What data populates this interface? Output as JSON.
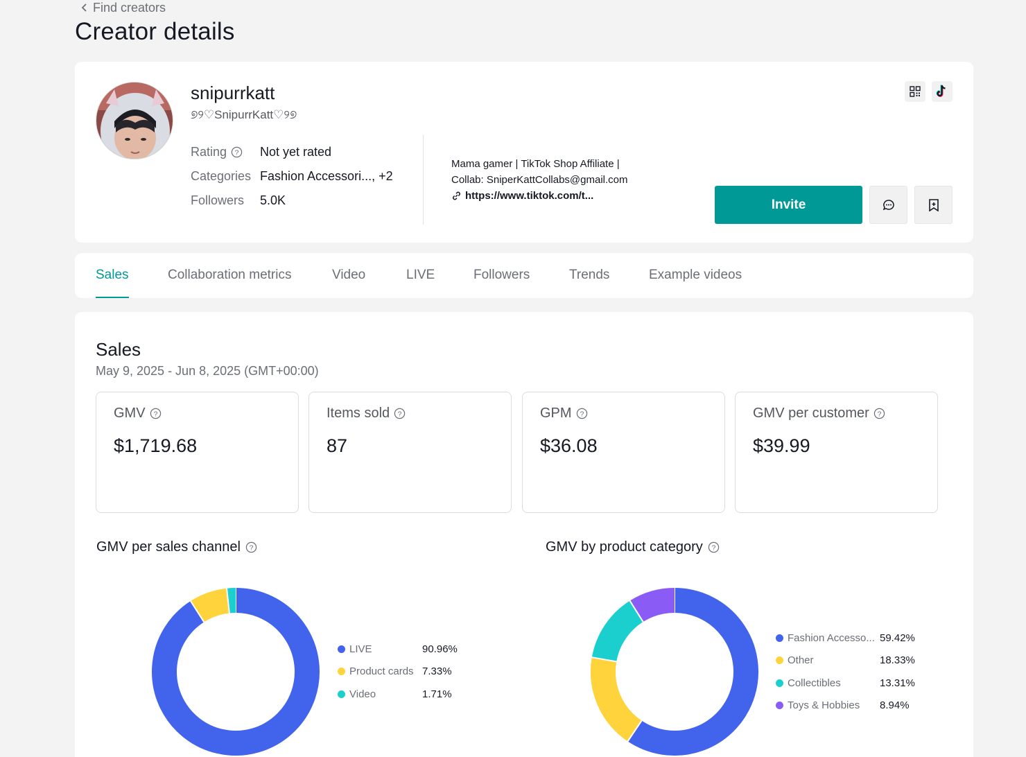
{
  "breadcrumb": {
    "back_label": "Find creators"
  },
  "page_title": "Creator details",
  "profile": {
    "username": "snipurrkatt",
    "nickname": "୭୨♡SnipurrKatt♡୨୭",
    "rating_label": "Rating",
    "rating_value": "Not yet rated",
    "categories_label": "Categories",
    "categories_value": "Fashion Accessori..., +2",
    "followers_label": "Followers",
    "followers_value": "5.0K",
    "bio_line1": "Mama gamer | TikTok Shop Affiliate |",
    "bio_line2": "Collab: SniperKattCollabs@gmail.com",
    "bio_link": "https://www.tiktok.com/t...",
    "invite_label": "Invite"
  },
  "tabs": [
    {
      "label": "Sales",
      "active": true
    },
    {
      "label": "Collaboration metrics"
    },
    {
      "label": "Video"
    },
    {
      "label": "LIVE"
    },
    {
      "label": "Followers"
    },
    {
      "label": "Trends"
    },
    {
      "label": "Example videos"
    }
  ],
  "sales": {
    "title": "Sales",
    "date_range": "May 9, 2025 - Jun 8, 2025 (GMT+00:00)",
    "metrics": [
      {
        "label": "GMV",
        "value": "$1,719.68"
      },
      {
        "label": "Items sold",
        "value": "87"
      },
      {
        "label": "GPM",
        "value": "$36.08"
      },
      {
        "label": "GMV per customer",
        "value": "$39.99"
      }
    ]
  },
  "colors": {
    "accent": "#009995",
    "blue": "#4263eb",
    "yellow": "#ffd33b",
    "teal": "#1ccfcf",
    "purple": "#8a5cf5"
  },
  "chart_data": [
    {
      "type": "pie",
      "title": "GMV per sales channel",
      "categories": [
        "LIVE",
        "Product cards",
        "Video"
      ],
      "values": [
        90.96,
        7.33,
        1.71
      ],
      "labels": [
        "90.96%",
        "7.33%",
        "1.71%"
      ],
      "colors": [
        "#4263eb",
        "#ffd33b",
        "#1ccfcf"
      ],
      "legend": "right"
    },
    {
      "type": "pie",
      "title": "GMV by product category",
      "categories": [
        "Fashion Accesso...",
        "Other",
        "Collectibles",
        "Toys & Hobbies"
      ],
      "values": [
        59.42,
        18.33,
        13.31,
        8.94
      ],
      "labels": [
        "59.42%",
        "18.33%",
        "13.31%",
        "8.94%"
      ],
      "colors": [
        "#4263eb",
        "#ffd33b",
        "#1ccfcf",
        "#8a5cf5"
      ],
      "legend": "right"
    }
  ]
}
